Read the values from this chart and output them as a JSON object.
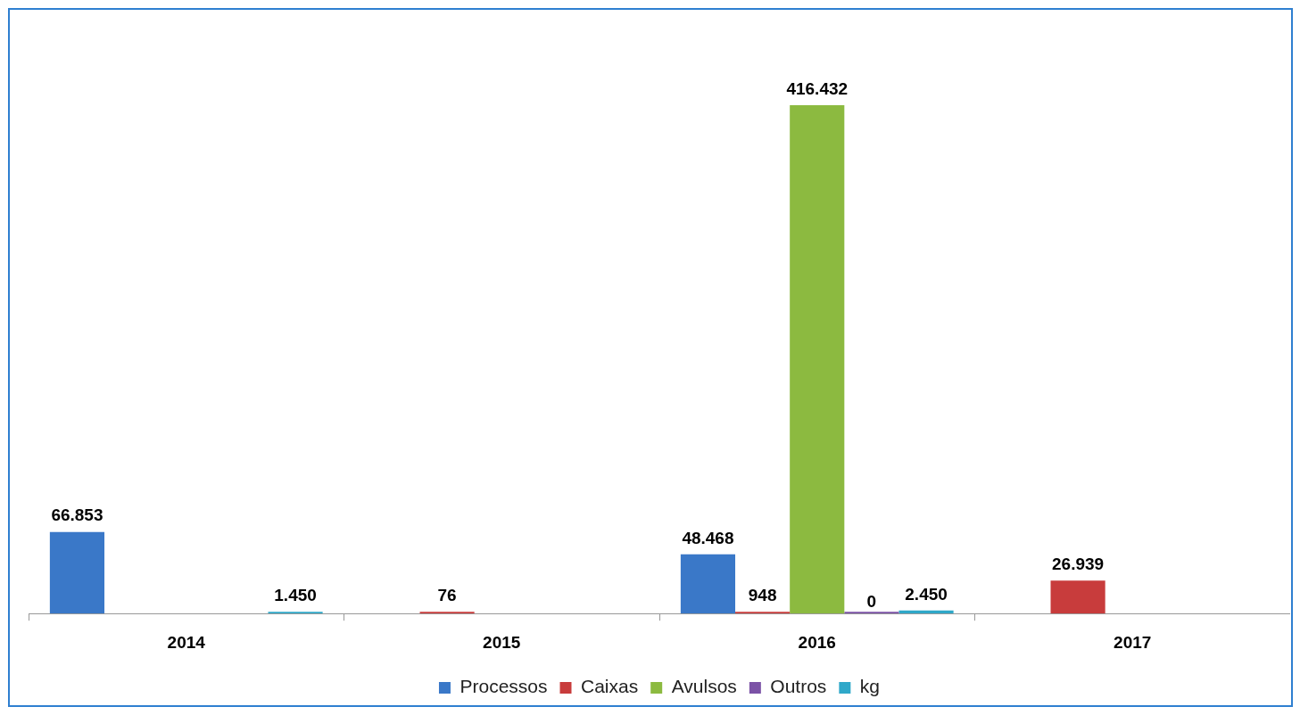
{
  "chart_data": {
    "type": "bar",
    "categories": [
      "2014",
      "2015",
      "2016",
      "2017"
    ],
    "series": [
      {
        "name": "Processos",
        "color": "#3a78c8",
        "values": [
          66853,
          null,
          48468,
          null
        ],
        "value_labels": [
          "66.853",
          null,
          "48.468",
          null
        ]
      },
      {
        "name": "Caixas",
        "color": "#c83c3c",
        "values": [
          null,
          76,
          948,
          26939
        ],
        "value_labels": [
          null,
          "76",
          "948",
          "26.939"
        ]
      },
      {
        "name": "Avulsos",
        "color": "#8cba40",
        "values": [
          null,
          null,
          416432,
          null
        ],
        "value_labels": [
          null,
          null,
          "416.432",
          null
        ]
      },
      {
        "name": "Outros",
        "color": "#7b52a6",
        "values": [
          null,
          null,
          0,
          null
        ],
        "value_labels": [
          null,
          null,
          "0",
          null
        ]
      },
      {
        "name": "kg",
        "color": "#2fa8c9",
        "values": [
          1450,
          null,
          2450,
          null
        ],
        "value_labels": [
          "1.450",
          null,
          "2.450",
          null
        ]
      }
    ],
    "legend": "bottom",
    "tick_labels": "x"
  }
}
